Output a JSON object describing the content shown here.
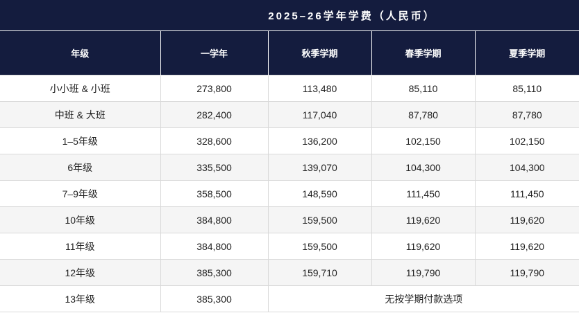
{
  "title": "2025–26学年学费（人民币）",
  "headers": [
    "年级",
    "一学年",
    "秋季学期",
    "春季学期",
    "夏季学期"
  ],
  "rows": [
    {
      "grade": "小小班 & 小班",
      "year": "273,800",
      "fall": "113,480",
      "spring": "85,110",
      "summer": "85,110"
    },
    {
      "grade": "中班 & 大班",
      "year": "282,400",
      "fall": "117,040",
      "spring": "87,780",
      "summer": "87,780"
    },
    {
      "grade": "1–5年级",
      "year": "328,600",
      "fall": "136,200",
      "spring": "102,150",
      "summer": "102,150"
    },
    {
      "grade": "6年级",
      "year": "335,500",
      "fall": "139,070",
      "spring": "104,300",
      "summer": "104,300"
    },
    {
      "grade": "7–9年级",
      "year": "358,500",
      "fall": "148,590",
      "spring": "111,450",
      "summer": "111,450"
    },
    {
      "grade": "10年级",
      "year": "384,800",
      "fall": "159,500",
      "spring": "119,620",
      "summer": "119,620"
    },
    {
      "grade": "11年级",
      "year": "384,800",
      "fall": "159,500",
      "spring": "119,620",
      "summer": "119,620"
    },
    {
      "grade": "12年级",
      "year": "385,300",
      "fall": "159,710",
      "spring": "119,790",
      "summer": "119,790"
    }
  ],
  "last_row": {
    "grade": "13年级",
    "year": "385,300",
    "note": "无按学期付款选项"
  },
  "colors": {
    "header_bg": "#141c3e",
    "header_text": "#ffffff",
    "stripe": "#f5f5f5",
    "border": "#d9d9d9"
  }
}
